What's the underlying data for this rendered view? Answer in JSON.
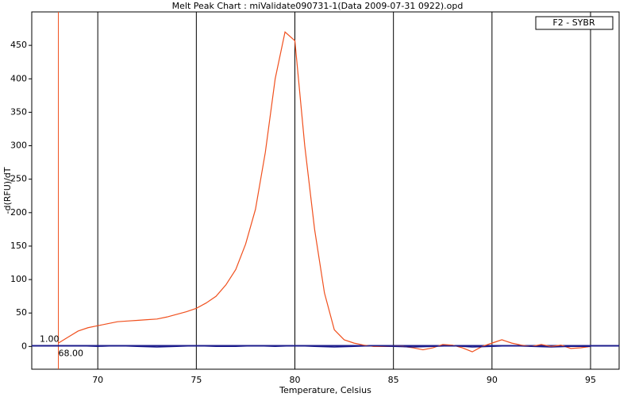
{
  "chart_data": {
    "type": "line",
    "title": "Melt Peak Chart : miValidate090731-1(Data 2009-07-31 0922).opd",
    "x_label": "Temperature, Celsius",
    "y_label": "-d(RFU)/dT",
    "xlim": [
      66.65,
      96.45
    ],
    "ylim": [
      -34,
      500
    ],
    "xticks": [
      70,
      75,
      80,
      85,
      90,
      95
    ],
    "yticks": [
      0,
      50,
      100,
      150,
      200,
      250,
      300,
      350,
      400,
      450
    ],
    "grid": "x",
    "legend": "upper right",
    "threshold": {
      "value": 1,
      "label": "1.00"
    },
    "cursor": {
      "value": 68,
      "label": "68.00"
    },
    "series": [
      {
        "name": "F2 - SYBR",
        "color": "#f0501e",
        "x": [
          68,
          68.5,
          69,
          69.5,
          70,
          70.5,
          71,
          71.5,
          72,
          72.5,
          73,
          73.5,
          74,
          74.5,
          75,
          75.5,
          76,
          76.5,
          77,
          77.5,
          78,
          78.5,
          79,
          79.5,
          80,
          80.5,
          81,
          81.5,
          82,
          82.5,
          83,
          83.5,
          84,
          84.5,
          85,
          85.5,
          86,
          86.5,
          87,
          87.5,
          88,
          88.5,
          89,
          89.5,
          90,
          90.5,
          91,
          91.5,
          92,
          92.5,
          93,
          93.5,
          94,
          94.5,
          95
        ],
        "values": [
          5,
          14,
          23,
          28,
          31,
          34,
          37,
          38,
          39,
          40,
          41,
          44,
          48,
          52,
          57,
          65,
          75,
          92,
          115,
          153,
          205,
          290,
          400,
          470,
          457,
          300,
          175,
          80,
          25,
          10,
          5,
          2,
          0,
          0,
          0,
          0,
          -2,
          -5,
          -2,
          3,
          2,
          -2,
          -8,
          0,
          5,
          10,
          5,
          2,
          0,
          3,
          0,
          2,
          -3,
          -2,
          0
        ]
      },
      {
        "color": "#1c1c8c",
        "x": [
          69,
          70,
          71,
          72,
          73,
          74,
          75,
          76,
          77,
          78,
          79,
          80,
          81,
          82,
          83,
          84,
          85,
          86,
          87,
          88,
          89,
          90,
          91,
          92,
          93,
          94,
          95
        ],
        "values": [
          1,
          0,
          1,
          0,
          -1,
          0,
          1,
          0,
          0,
          1,
          0,
          1,
          0,
          -1,
          0,
          1,
          0,
          -1,
          0,
          1,
          -1,
          0,
          1,
          0,
          -1,
          0,
          0
        ]
      }
    ]
  }
}
